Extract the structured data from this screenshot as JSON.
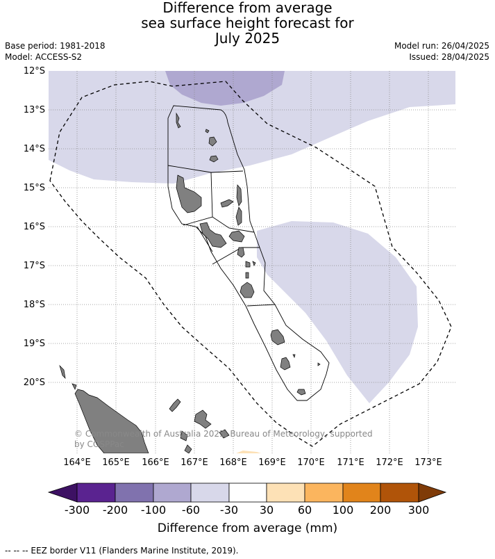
{
  "title": {
    "line1": "Difference from average",
    "line2": "sea surface height forecast for",
    "line3": "July 2025"
  },
  "meta": {
    "base_period": "Base period: 1981-2018",
    "model": "Model: ACCESS-S2",
    "model_run": "Model run: 26/04/2025",
    "issued": "Issued: 28/04/2025"
  },
  "map": {
    "lat_labels": [
      "12°S",
      "13°S",
      "14°S",
      "15°S",
      "16°S",
      "17°S",
      "18°S",
      "19°S",
      "20°S"
    ],
    "lon_labels": [
      "164°E",
      "165°E",
      "166°E",
      "167°E",
      "168°E",
      "169°E",
      "170°E",
      "171°E",
      "172°E",
      "173°E"
    ],
    "copyright": "© Commonwealth of Australia 2025, Bureau of Meteorology, supported by COSPPac",
    "land_color": "#808080",
    "ocean_color": "#ffffff"
  },
  "colorbar": {
    "title": "Difference from average (mm)",
    "tick_labels": [
      "-300",
      "-200",
      "-100",
      "-60",
      "-30",
      "30",
      "60",
      "100",
      "200",
      "300"
    ],
    "colors": [
      "#3d1163",
      "#5a2390",
      "#8072ae",
      "#afa8d0",
      "#d8d8ea",
      "#ffffff",
      "#fde1b6",
      "#fbb55e",
      "#e1841b",
      "#b05409",
      "#7f3b08"
    ]
  },
  "footer": "--  --  -- EEZ border V11 (Flanders Marine Institute, 2019)."
}
